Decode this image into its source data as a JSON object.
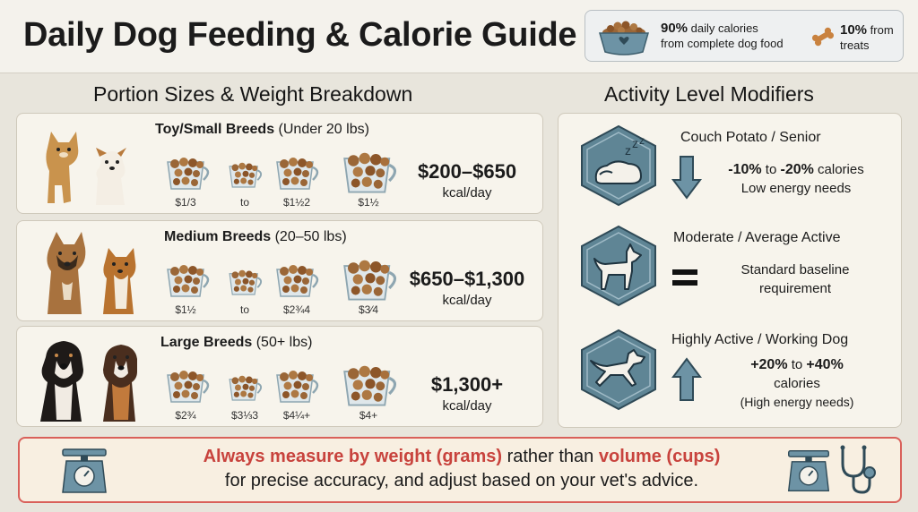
{
  "title": "Daily Dog Feeding & Calorie Guide",
  "ratio": {
    "complete_pct": "90%",
    "complete_text_1": "daily calories",
    "complete_text_2": "from complete dog food",
    "treats_pct": "10%",
    "treats_text_1": "from",
    "treats_text_2": "treats",
    "icons": [
      "food-bowl-icon",
      "bone-treat-icon"
    ]
  },
  "portion_section": {
    "title": "Portion Sizes & Weight Breakdown",
    "breeds": [
      {
        "name": "Toy/Small Breeds",
        "range": "(Under 20 lbs)",
        "cups": [
          "$1/3",
          "to",
          "$1½2",
          "$1½"
        ],
        "kcal": "$200–$650",
        "unit": "kcal/day"
      },
      {
        "name": "Medium Breeds",
        "range": "(20–50 lbs)",
        "cups": [
          "$1½",
          "to",
          "$2¾4",
          "$3⁄4"
        ],
        "kcal": "$650–$1,300",
        "unit": "kcal/day"
      },
      {
        "name": "Large Breeds",
        "range": "(50+ lbs)",
        "cups": [
          "$2¾",
          "$3⅓3",
          "$4¼+",
          "$4+"
        ],
        "kcal": "$1,300+",
        "unit": "kcal/day"
      }
    ]
  },
  "activity_section": {
    "title": "Activity Level Modifiers",
    "levels": [
      {
        "title": "Couch Potato / Senior",
        "pct_a": "-10%",
        "mid": " to ",
        "pct_b": "-20%",
        "suffix": " calories",
        "line2": "Low energy needs",
        "icon": "sleeping-dog-icon",
        "indicator": "arrow-down-icon"
      },
      {
        "title": "Moderate / Average Active",
        "line1": "Standard baseline",
        "line2": "requirement",
        "icon": "standing-dog-icon",
        "indicator": "equals-icon"
      },
      {
        "title": "Highly Active / Working Dog",
        "pct_a": "+20%",
        "mid": " to ",
        "pct_b": "+40%",
        "line2": "calories",
        "line3": "(High energy needs)",
        "icon": "running-dog-icon",
        "indicator": "arrow-up-icon"
      }
    ]
  },
  "footer": {
    "hl1": "Always measure by weight (grams)",
    "mid": " rather than ",
    "hl2": "volume (cups)",
    "line2": "for precise accuracy, and adjust based on your vet's advice.",
    "icons": [
      "kitchen-scale-icon",
      "stethoscope-icon"
    ]
  },
  "colors": {
    "accent_red": "#c8433d",
    "icon_blue": "#5f8595",
    "panel": "#f7f4ec"
  }
}
